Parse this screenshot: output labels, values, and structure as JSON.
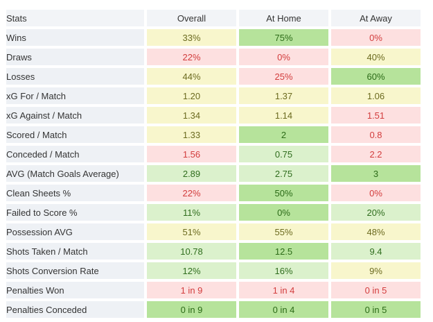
{
  "header": {
    "stats": "Stats",
    "overall": "Overall",
    "home": "At Home",
    "away": "At Away"
  },
  "colors": {
    "strong_green": "#b6e39b",
    "light_green": "#dbf1cc",
    "yellow": "#f8f6cc",
    "red": "#fde0e0"
  },
  "rows": [
    {
      "label": "Wins",
      "overall": "33%",
      "overall_c": "y",
      "home": "75%",
      "home_c": "g",
      "away": "0%",
      "away_c": "r"
    },
    {
      "label": "Draws",
      "overall": "22%",
      "overall_c": "r",
      "home": "0%",
      "home_c": "r",
      "away": "40%",
      "away_c": "y"
    },
    {
      "label": "Losses",
      "overall": "44%",
      "overall_c": "y",
      "home": "25%",
      "home_c": "r",
      "away": "60%",
      "away_c": "g"
    },
    {
      "label": "xG For / Match",
      "overall": "1.20",
      "overall_c": "y",
      "home": "1.37",
      "home_c": "y",
      "away": "1.06",
      "away_c": "y"
    },
    {
      "label": "xG Against / Match",
      "overall": "1.34",
      "overall_c": "y",
      "home": "1.14",
      "home_c": "y",
      "away": "1.51",
      "away_c": "r"
    },
    {
      "label": "Scored / Match",
      "overall": "1.33",
      "overall_c": "y",
      "home": "2",
      "home_c": "g",
      "away": "0.8",
      "away_c": "r"
    },
    {
      "label": "Conceded / Match",
      "overall": "1.56",
      "overall_c": "r",
      "home": "0.75",
      "home_c": "lg",
      "away": "2.2",
      "away_c": "r"
    },
    {
      "label": "AVG (Match Goals Average)",
      "overall": "2.89",
      "overall_c": "lg",
      "home": "2.75",
      "home_c": "lg",
      "away": "3",
      "away_c": "g"
    },
    {
      "label": "Clean Sheets %",
      "overall": "22%",
      "overall_c": "r",
      "home": "50%",
      "home_c": "g",
      "away": "0%",
      "away_c": "r"
    },
    {
      "label": "Failed to Score %",
      "overall": "11%",
      "overall_c": "lg",
      "home": "0%",
      "home_c": "g",
      "away": "20%",
      "away_c": "lg"
    },
    {
      "label": "Possession AVG",
      "overall": "51%",
      "overall_c": "y",
      "home": "55%",
      "home_c": "y",
      "away": "48%",
      "away_c": "y"
    },
    {
      "label": "Shots Taken / Match",
      "overall": "10.78",
      "overall_c": "lg",
      "home": "12.5",
      "home_c": "g",
      "away": "9.4",
      "away_c": "lg"
    },
    {
      "label": "Shots Conversion Rate",
      "overall": "12%",
      "overall_c": "lg",
      "home": "16%",
      "home_c": "lg",
      "away": "9%",
      "away_c": "y"
    },
    {
      "label": "Penalties Won",
      "overall": "1 in 9",
      "overall_c": "r",
      "home": "1 in 4",
      "home_c": "r",
      "away": "0 in 5",
      "away_c": "r"
    },
    {
      "label": "Penalties Conceded",
      "overall": "0 in 9",
      "overall_c": "g",
      "home": "0 in 4",
      "home_c": "g",
      "away": "0 in 5",
      "away_c": "g"
    }
  ]
}
